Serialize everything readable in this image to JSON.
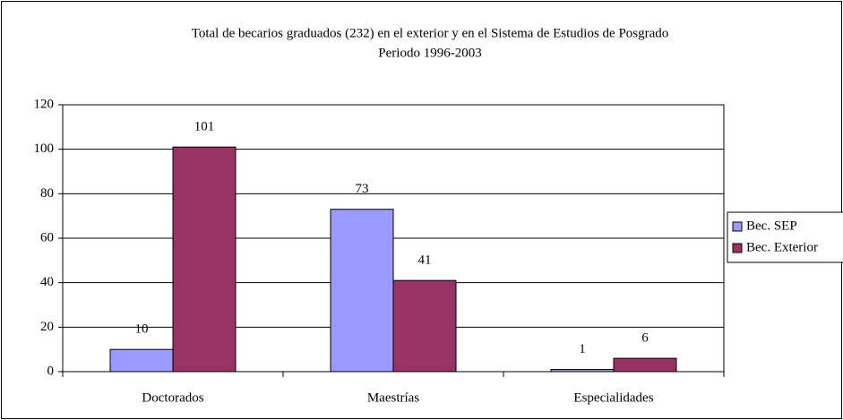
{
  "chart_data": {
    "type": "bar",
    "title": "Total de becarios graduados (232) en el exterior y en el Sistema de Estudios de Posgrado",
    "subtitle": "Periodo 1996-2003",
    "categories": [
      "Doctorados",
      "Maestrías",
      "Especialidades"
    ],
    "series": [
      {
        "name": "Bec. SEP",
        "color": "#9999ff",
        "values": [
          10,
          73,
          1
        ]
      },
      {
        "name": "Bec. Exterior",
        "color": "#993366",
        "values": [
          101,
          41,
          6
        ]
      }
    ],
    "ylim": [
      0,
      120
    ],
    "yticks": [
      0,
      20,
      40,
      60,
      80,
      100,
      120
    ],
    "grid": true,
    "legend": "right"
  }
}
